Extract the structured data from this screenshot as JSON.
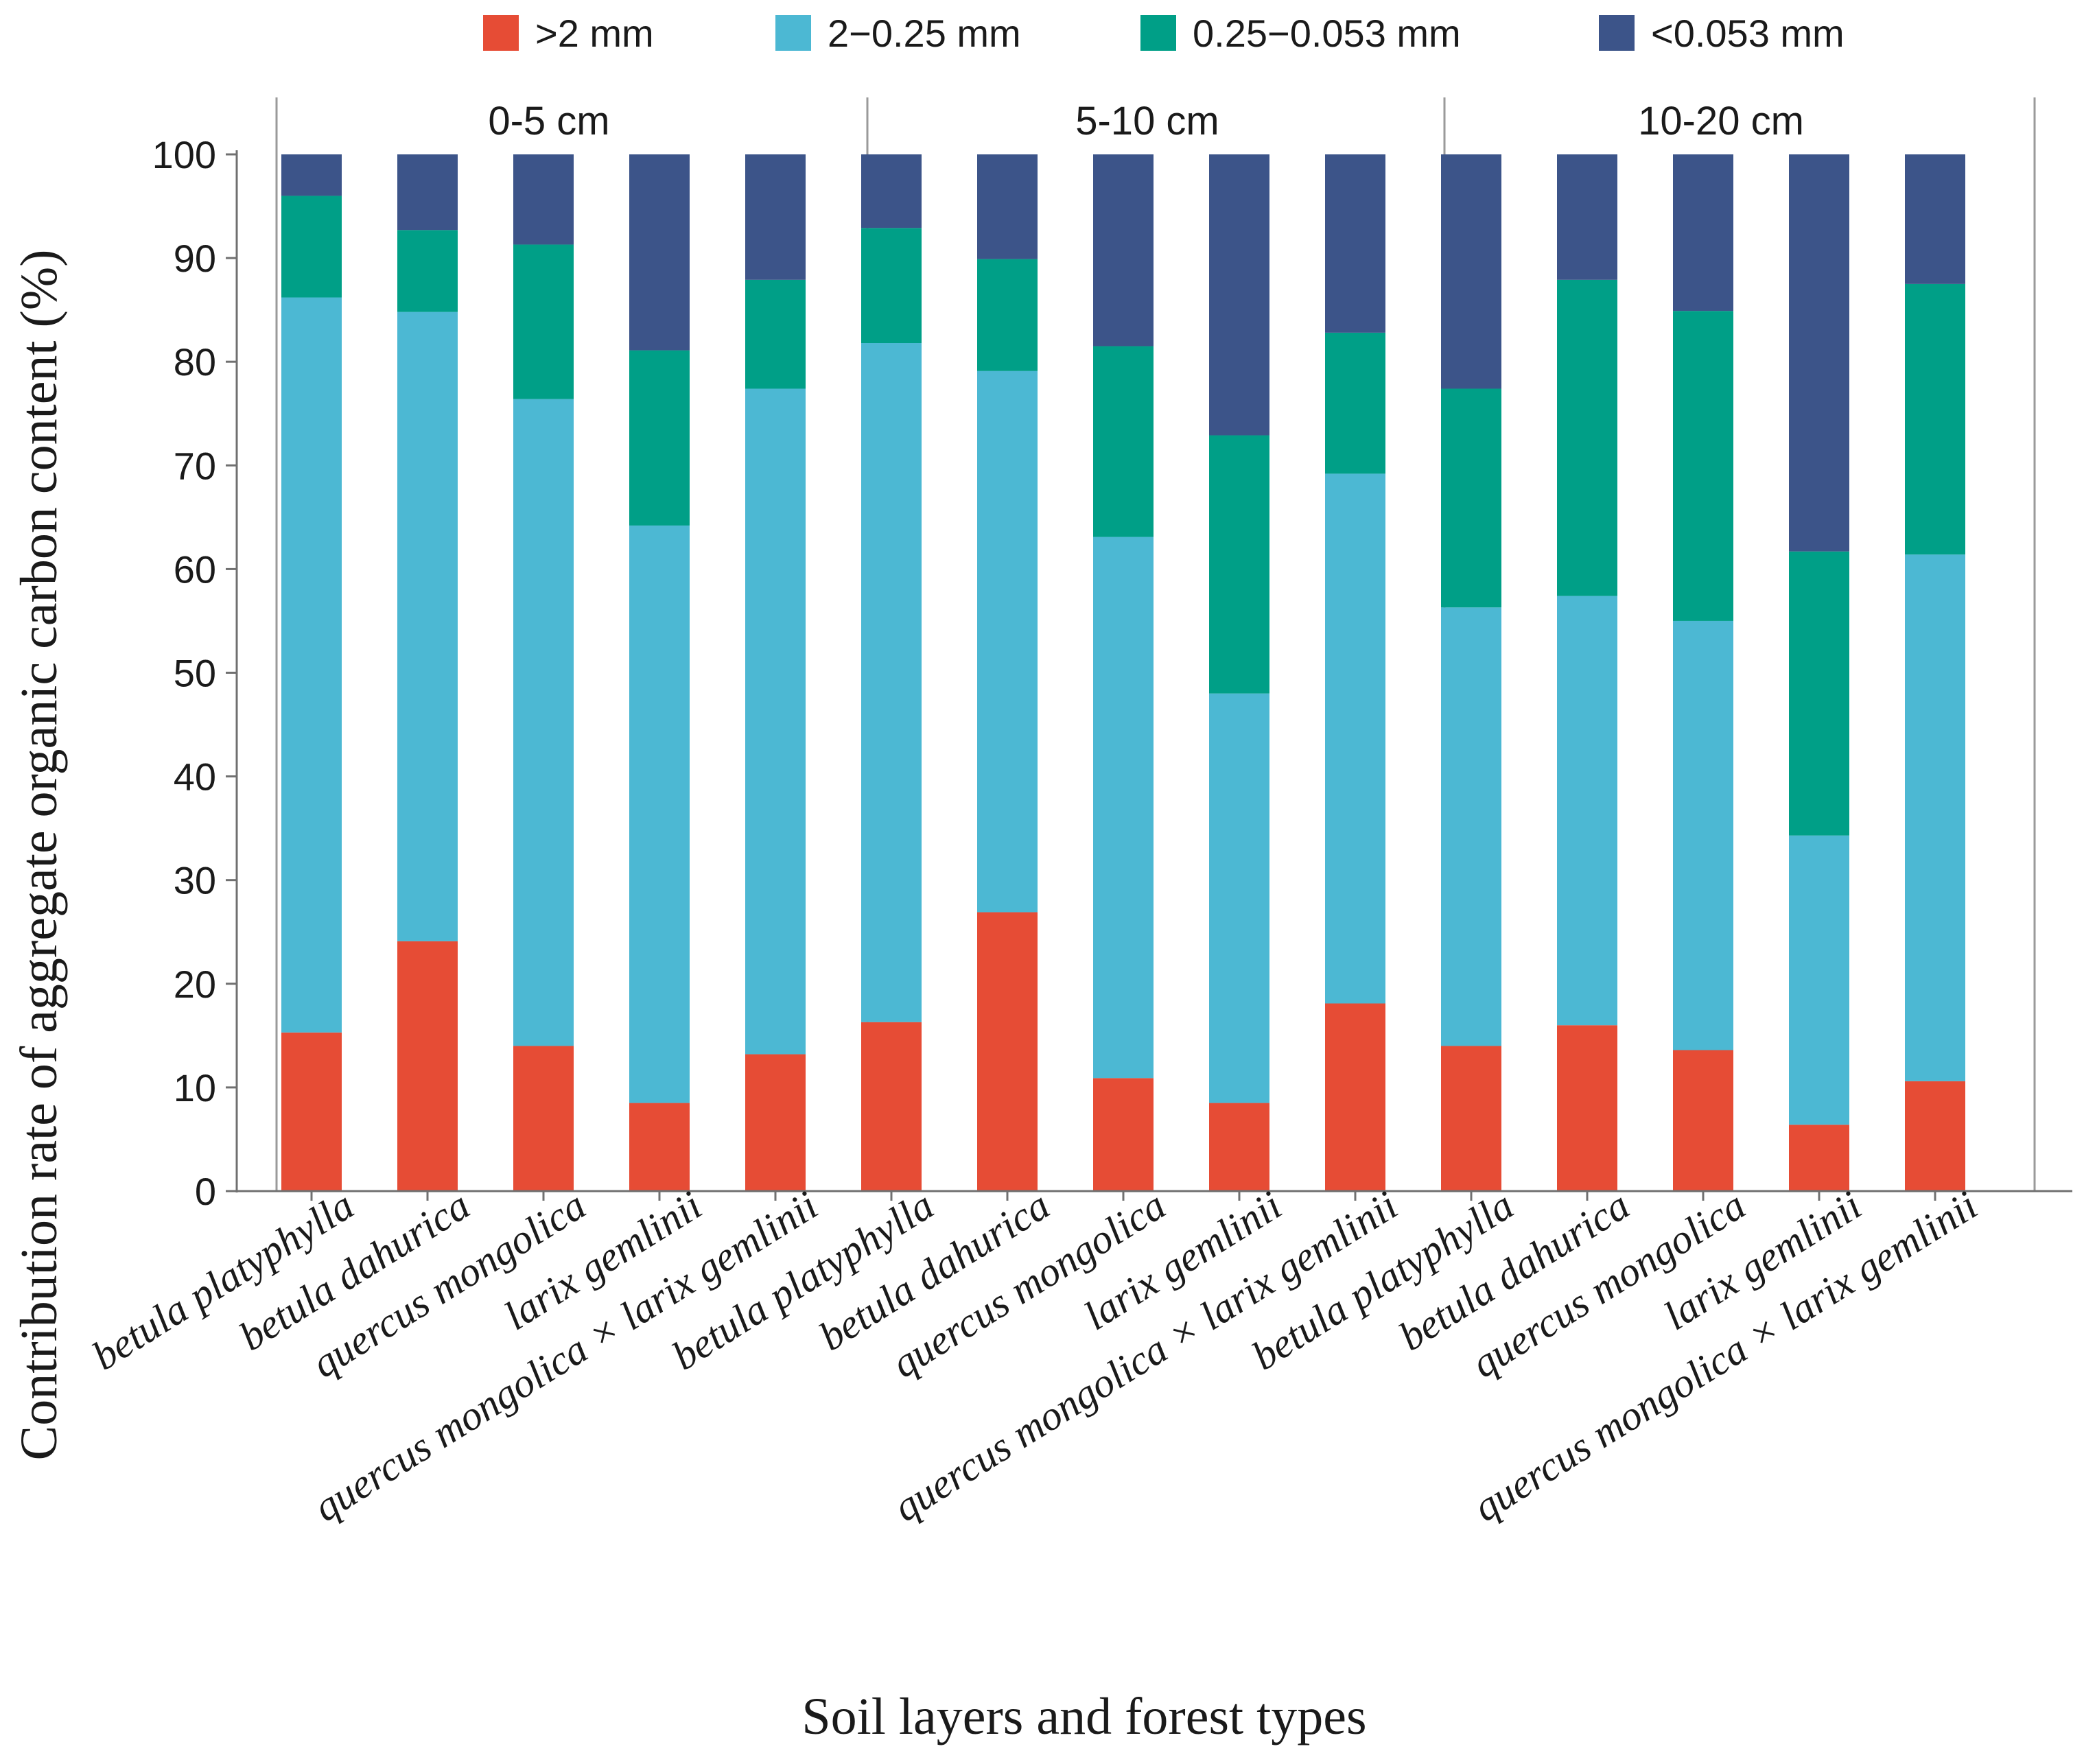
{
  "chart_data": {
    "type": "bar",
    "stacked": true,
    "xlabel": "Soil layers and forest types",
    "ylabel": "Contribution rate of aggregate organic carbon content (%)",
    "ylim": [
      0,
      100
    ],
    "yticks": [
      0,
      10,
      20,
      30,
      40,
      50,
      60,
      70,
      80,
      90,
      100
    ],
    "grid": false,
    "legend_position": "top",
    "groups": [
      {
        "label": "0-5 cm",
        "categories": [
          "betula platyphylla",
          "betula dahurica",
          "quercus mongolica",
          "larix gemlinii",
          "quercus mongolica × larix gemlinii"
        ]
      },
      {
        "label": "5-10 cm",
        "categories": [
          "betula platyphylla",
          "betula dahurica",
          "quercus mongolica",
          "larix gemlinii",
          "quercus mongolica × larix gemlinii"
        ]
      },
      {
        "label": "10-20 cm",
        "categories": [
          "betula platyphylla",
          "betula dahurica",
          "quercus mongolica",
          "larix gemlinii",
          "quercus mongolica × larix gemlinii"
        ]
      }
    ],
    "series": [
      {
        "name": ">2 mm",
        "color": "#e64c35",
        "values": [
          15.3,
          24.1,
          14.0,
          8.5,
          13.2,
          16.3,
          26.9,
          10.9,
          8.5,
          18.1,
          14.0,
          16.0,
          13.6,
          6.4,
          10.6
        ]
      },
      {
        "name": "2−0.25 mm",
        "color": "#4cb8d3",
        "values": [
          70.9,
          60.7,
          62.4,
          55.7,
          64.2,
          65.5,
          52.2,
          52.2,
          39.5,
          51.1,
          42.3,
          41.4,
          41.4,
          27.9,
          50.8
        ]
      },
      {
        "name": "0.25−0.053 mm",
        "color": "#009f87",
        "values": [
          9.8,
          7.9,
          14.9,
          16.9,
          10.5,
          11.1,
          10.8,
          18.4,
          24.9,
          13.6,
          21.1,
          30.5,
          29.9,
          27.4,
          26.1
        ]
      },
      {
        "name": "<0.053 mm",
        "color": "#3c5489",
        "values": [
          4.0,
          7.3,
          8.7,
          18.9,
          12.1,
          7.1,
          10.1,
          18.5,
          27.1,
          17.2,
          22.6,
          12.1,
          15.1,
          38.3,
          12.5
        ]
      }
    ]
  }
}
